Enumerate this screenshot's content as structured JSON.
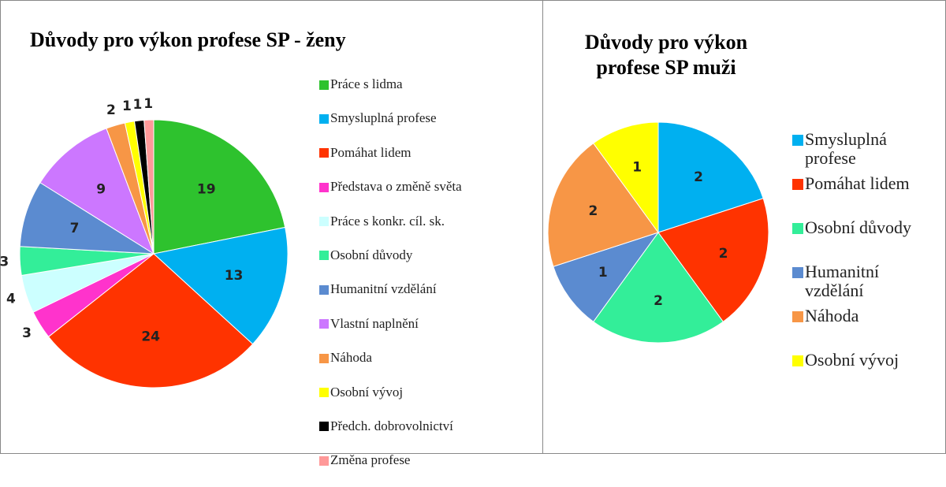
{
  "chart_data": [
    {
      "type": "pie",
      "title": "Důvody pro výkon profese SP  - ženy",
      "categories": [
        "Práce s lidma",
        "Smysluplná profese",
        "Pomáhat lidem",
        "Představa o změně světa",
        "Práce s konkr. cíl. sk.",
        "Osobní důvody",
        "Humanitní vzdělání",
        "Vlastní naplnění",
        "Náhoda",
        "Osobní vývoj",
        "Předch. dobrovolnictví",
        "Změna profese"
      ],
      "values": [
        19,
        13,
        24,
        3,
        4,
        3,
        7,
        9,
        2,
        1,
        1,
        1
      ],
      "colors": [
        "#2ec22e",
        "#00b0f0",
        "#ff3300",
        "#ff33cc",
        "#ccffff",
        "#33ee99",
        "#5b8bd0",
        "#cc77ff",
        "#f79646",
        "#ffff00",
        "#000000",
        "#ff9999"
      ]
    },
    {
      "type": "pie",
      "title": "Důvody pro výkon profese SP  muži",
      "categories": [
        "Smysluplná profese",
        "Pomáhat lidem",
        "Osobní důvody",
        "Humanitní vzdělání",
        "Náhoda",
        "Osobní vývoj"
      ],
      "values": [
        2,
        2,
        2,
        1,
        2,
        1
      ],
      "colors": [
        "#00b0f0",
        "#ff3300",
        "#33ee99",
        "#5b8bd0",
        "#f79646",
        "#ffff00"
      ]
    }
  ]
}
